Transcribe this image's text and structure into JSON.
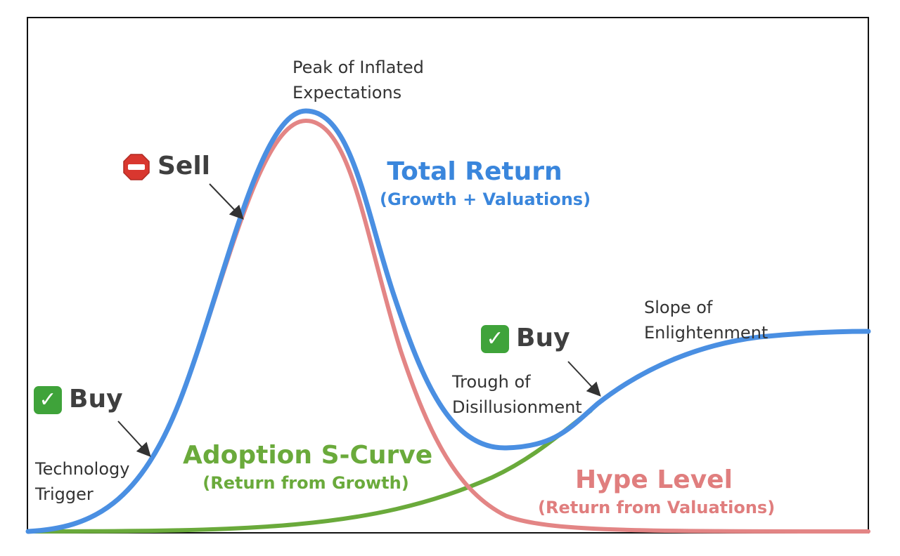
{
  "stages": {
    "trigger": "Technology\nTrigger",
    "peak": "Peak of Inflated\nExpectations",
    "trough": "Trough of\nDisillusionment",
    "slope": "Slope of\nEnlightenment"
  },
  "signals": {
    "buy_early": "Buy",
    "sell": "Sell",
    "buy_trough": "Buy"
  },
  "curves": {
    "total_return": {
      "title": "Total Return",
      "subtitle": "(Growth + Valuations)",
      "color": "#4a8fe2"
    },
    "adoption": {
      "title": "Adoption S-Curve",
      "subtitle": "(Return from Growth)",
      "color": "#6aaa3b"
    },
    "hype": {
      "title": "Hype Level",
      "subtitle": "(Return from Valuations)",
      "color": "#e38585"
    }
  },
  "icons": {
    "buy": "check-box-icon",
    "sell": "stop-sign-icon"
  }
}
